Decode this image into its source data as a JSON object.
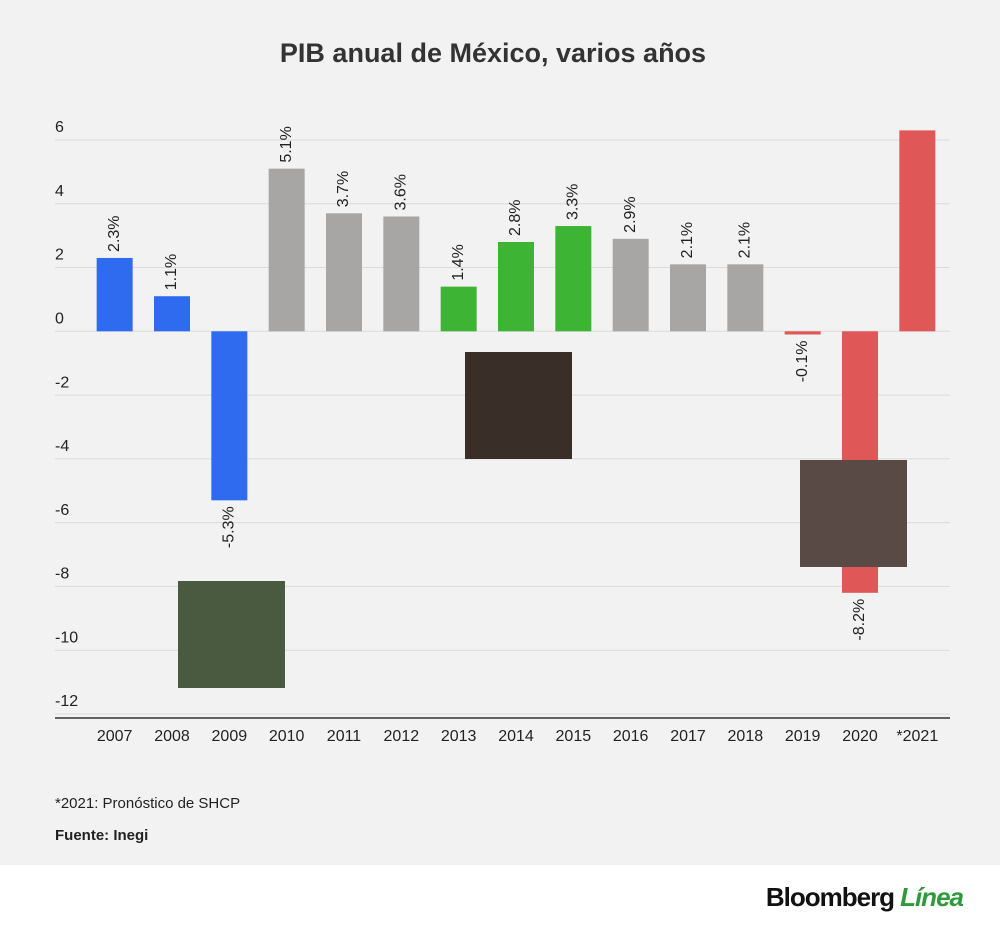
{
  "chart_data": {
    "type": "bar",
    "title": "PIB anual de México, varios años",
    "categories": [
      "2007",
      "2008",
      "2009",
      "2010",
      "2011",
      "2012",
      "2013",
      "2014",
      "2015",
      "2016",
      "2017",
      "2018",
      "2019",
      "2020",
      "*2021"
    ],
    "values": [
      2.3,
      1.1,
      -5.3,
      5.1,
      3.7,
      3.6,
      1.4,
      2.8,
      3.3,
      2.9,
      2.1,
      2.1,
      -0.1,
      -8.2,
      6.3
    ],
    "value_labels": [
      "2.3%",
      "1.1%",
      "-5.3%",
      "5.1%",
      "3.7%",
      "3.6%",
      "1.4%",
      "2.8%",
      "3.3%",
      "2.9%",
      "2.1%",
      "2.1%",
      "-0.1%",
      "-8.2%",
      null
    ],
    "colors": [
      "#2f6bef",
      "#2f6bef",
      "#2f6bef",
      "#a8a5a5",
      "#a8a5a5",
      "#a8a5a5",
      "#3db434",
      "#3db434",
      "#3db434",
      "#a8a5a5",
      "#a8a5a5",
      "#a8a5a5",
      "#e05757",
      "#e05757",
      "#e05757"
    ],
    "ylim": [
      -12,
      6.5
    ],
    "yticks": [
      6,
      4,
      2,
      0,
      -2,
      -4,
      -6,
      -8,
      -10,
      -12
    ],
    "grid": true,
    "notes": [
      "*2021: Pronóstico de SHCP",
      "Fuente: Inegi"
    ]
  },
  "brand": {
    "name": "Bloomberg",
    "suffix": "Línea"
  }
}
